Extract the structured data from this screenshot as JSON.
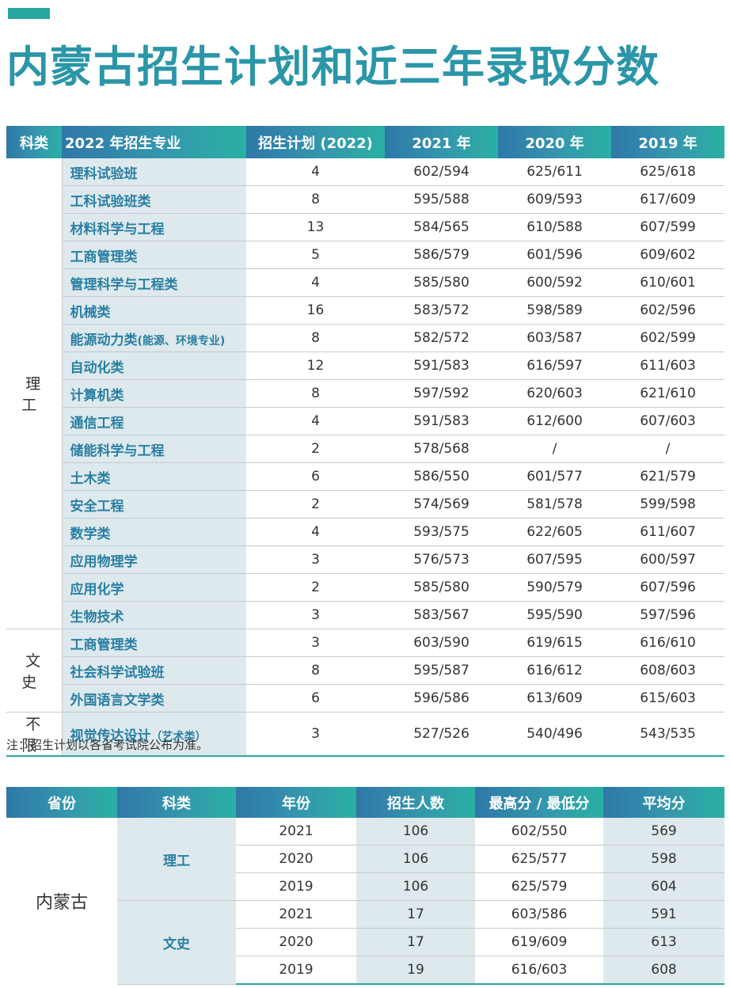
{
  "title": "内蒙古招生计划和近三年录取分数",
  "table1": {
    "headers": [
      "科类",
      "2022 年招生专业",
      "招生计划 (2022)",
      "2021 年",
      "2020 年",
      "2019 年"
    ],
    "categories": [
      "理 工",
      "文 史",
      "不 限"
    ],
    "rows": [
      {
        "major": "理科试验班",
        "plan": "4",
        "y2021": "602/594",
        "y2020": "625/611",
        "y2019": "625/618"
      },
      {
        "major": "工科试验班类",
        "plan": "8",
        "y2021": "595/588",
        "y2020": "609/593",
        "y2019": "617/609"
      },
      {
        "major": "材料科学与工程",
        "plan": "13",
        "y2021": "584/565",
        "y2020": "610/588",
        "y2019": "607/599"
      },
      {
        "major": "工商管理类",
        "plan": "5",
        "y2021": "586/579",
        "y2020": "601/596",
        "y2019": "609/602"
      },
      {
        "major": "管理科学与工程类",
        "plan": "4",
        "y2021": "585/580",
        "y2020": "600/592",
        "y2019": "610/601"
      },
      {
        "major": "机械类",
        "plan": "16",
        "y2021": "583/572",
        "y2020": "598/589",
        "y2019": "602/596"
      },
      {
        "major": "能源动力类",
        "note": "(能源、环境专业)",
        "plan": "8",
        "y2021": "582/572",
        "y2020": "603/587",
        "y2019": "602/599"
      },
      {
        "major": "自动化类",
        "plan": "12",
        "y2021": "591/583",
        "y2020": "616/597",
        "y2019": "611/603"
      },
      {
        "major": "计算机类",
        "plan": "8",
        "y2021": "597/592",
        "y2020": "620/603",
        "y2019": "621/610"
      },
      {
        "major": "通信工程",
        "plan": "4",
        "y2021": "591/583",
        "y2020": "612/600",
        "y2019": "607/603"
      },
      {
        "major": "储能科学与工程",
        "plan": "2",
        "y2021": "578/568",
        "y2020": "/",
        "y2019": "/"
      },
      {
        "major": "土木类",
        "plan": "6",
        "y2021": "586/550",
        "y2020": "601/577",
        "y2019": "621/579"
      },
      {
        "major": "安全工程",
        "plan": "2",
        "y2021": "574/569",
        "y2020": "581/578",
        "y2019": "599/598"
      },
      {
        "major": "数学类",
        "plan": "4",
        "y2021": "593/575",
        "y2020": "622/605",
        "y2019": "611/607"
      },
      {
        "major": "应用物理学",
        "plan": "3",
        "y2021": "576/573",
        "y2020": "607/595",
        "y2019": "600/597"
      },
      {
        "major": "应用化学",
        "plan": "2",
        "y2021": "585/580",
        "y2020": "590/579",
        "y2019": "607/596"
      },
      {
        "major": "生物技术",
        "plan": "3",
        "y2021": "583/567",
        "y2020": "595/590",
        "y2019": "597/596"
      },
      {
        "major": "工商管理类",
        "plan": "3",
        "y2021": "603/590",
        "y2020": "619/615",
        "y2019": "616/610"
      },
      {
        "major": "社会科学试验班",
        "plan": "8",
        "y2021": "595/587",
        "y2020": "616/612",
        "y2019": "608/603"
      },
      {
        "major": "外国语言文学类",
        "plan": "6",
        "y2021": "596/586",
        "y2020": "613/609",
        "y2019": "615/603"
      },
      {
        "major": "视觉传达设计",
        "note": "（艺术类）",
        "plan": "3",
        "y2021": "527/526",
        "y2020": "540/496",
        "y2019": "543/535"
      }
    ]
  },
  "footnote": "注：招生计划以各省考试院公布为准。",
  "table2": {
    "headers": [
      "省份",
      "科类",
      "年份",
      "招生人数",
      "最高分 / 最低分",
      "平均分"
    ],
    "province": "内蒙古",
    "groups": [
      {
        "kelei": "理工",
        "rows": [
          {
            "year": "2021",
            "count": "106",
            "maxmin": "602/550",
            "avg": "569"
          },
          {
            "year": "2020",
            "count": "106",
            "maxmin": "625/577",
            "avg": "598"
          },
          {
            "year": "2019",
            "count": "106",
            "maxmin": "625/579",
            "avg": "604"
          }
        ]
      },
      {
        "kelei": "文史",
        "rows": [
          {
            "year": "2021",
            "count": "17",
            "maxmin": "603/586",
            "avg": "591"
          },
          {
            "year": "2020",
            "count": "17",
            "maxmin": "619/609",
            "avg": "613"
          },
          {
            "year": "2019",
            "count": "19",
            "maxmin": "616/603",
            "avg": "608"
          }
        ]
      }
    ]
  },
  "colors": {
    "accent": "#2aa6a2",
    "title": "#2a96a8",
    "header_start": "#2f78a8",
    "header_end": "#2ab0a3",
    "shade": "#dde9ec",
    "major_text": "#2a7fa3"
  }
}
